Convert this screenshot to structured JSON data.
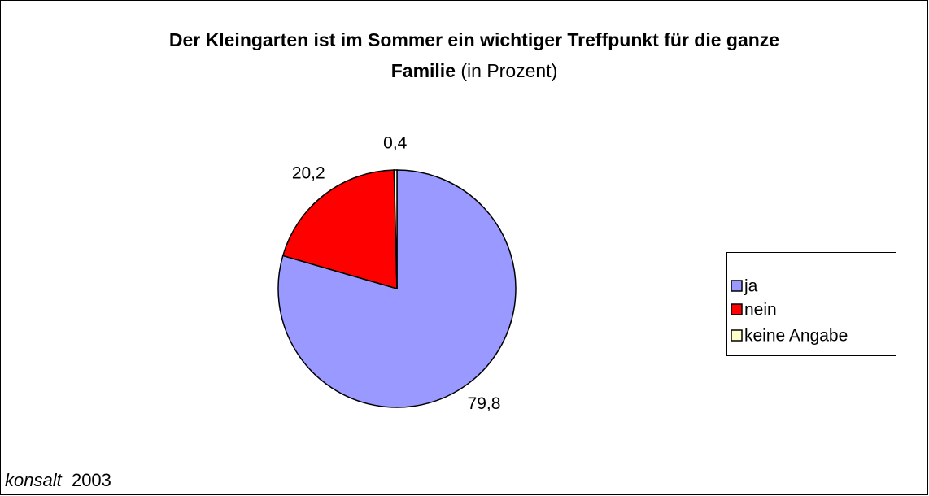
{
  "chart_data": {
    "type": "pie",
    "title": "Der Kleingarten ist im Sommer ein wichtiger Treffpunkt für die ganze Familie",
    "subtitle": "(in Prozent)",
    "categories": [
      "ja",
      "nein",
      "keine Angabe"
    ],
    "values": [
      79.8,
      20.2,
      0.4
    ],
    "value_labels": [
      "79,8",
      "20,2",
      "0,4"
    ],
    "colors": [
      "#9999ff",
      "#ff0000",
      "#ffffcc"
    ],
    "legend": "right",
    "source": "konsalt",
    "year": "2003"
  }
}
